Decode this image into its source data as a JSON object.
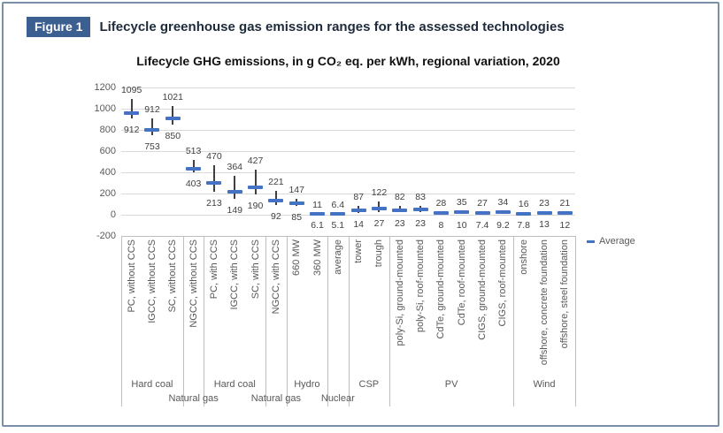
{
  "header": {
    "badge": "Figure 1",
    "title": "Lifecycle greenhouse gas emission ranges for the assessed technologies"
  },
  "chart_data": {
    "type": "scatter",
    "style": "high-low-average range chart (vertical range line with average dash marker, max label above, min label below)",
    "title": "Lifecycle GHG emissions, in g CO₂ eq. per kWh, regional variation, 2020",
    "legend": [
      "Average"
    ],
    "legend_position": "right",
    "ylim": [
      -200,
      1200
    ],
    "y_ticks": [
      1200,
      1000,
      800,
      600,
      400,
      200,
      0,
      -200
    ],
    "grid": true,
    "colors": {
      "average_marker": "#4472C4",
      "range_line": "#404040",
      "gridline": "#D9D9D9",
      "axis_line": "#BFBFBF",
      "axis_text": "#595959",
      "data_label": "#404040",
      "frame_border": "#7A90A8",
      "badge_bg": "#3C5F91",
      "badge_text": "#FFFFFF",
      "header_text": "#1E2B3B"
    },
    "points": [
      {
        "label": "PC, without CCS",
        "group": "Hard coal",
        "min": 912,
        "max": 1095,
        "avg": 960,
        "min_label": "912",
        "max_label": "1095"
      },
      {
        "label": "IGCC, without CCS",
        "group": "Hard coal",
        "min": 753,
        "max": 912,
        "avg": 800,
        "min_label": "753",
        "max_label": "912"
      },
      {
        "label": "SC, without CCS",
        "group": "Hard coal",
        "min": 850,
        "max": 1021,
        "avg": 910,
        "min_label": "850",
        "max_label": "1021"
      },
      {
        "label": "NGCC, without CCS",
        "group": "Natural gas",
        "min": 403,
        "max": 513,
        "avg": 435,
        "min_label": "403",
        "max_label": "513"
      },
      {
        "label": "PC, with CCS",
        "group": "Hard coal",
        "min": 213,
        "max": 470,
        "avg": 300,
        "min_label": "213",
        "max_label": "470"
      },
      {
        "label": "IGCC, with CCS",
        "group": "Hard coal",
        "min": 149,
        "max": 364,
        "avg": 215,
        "min_label": "149",
        "max_label": "364"
      },
      {
        "label": "SC, with CCS",
        "group": "Hard coal",
        "min": 190,
        "max": 427,
        "avg": 260,
        "min_label": "190",
        "max_label": "427"
      },
      {
        "label": "NGCC, with CCS",
        "group": "Natural gas",
        "min": 92,
        "max": 221,
        "avg": 135,
        "min_label": "92",
        "max_label": "221"
      },
      {
        "label": "660 MW",
        "group": "Hydro",
        "min": 85,
        "max": 147,
        "avg": 110,
        "min_label": "85",
        "max_label": "147"
      },
      {
        "label": "360 MW",
        "group": "Hydro",
        "min": 6.1,
        "max": 11,
        "avg": 8.5,
        "min_label": "6.1",
        "max_label": "11"
      },
      {
        "label": "average",
        "group": "Nuclear",
        "min": 5.1,
        "max": 6.4,
        "avg": 5.7,
        "min_label": "5.1",
        "max_label": "6.4"
      },
      {
        "label": "tower",
        "group": "CSP",
        "min": 14,
        "max": 87,
        "avg": 42,
        "min_label": "14",
        "max_label": "87"
      },
      {
        "label": "trough",
        "group": "CSP",
        "min": 27,
        "max": 122,
        "avg": 58,
        "min_label": "27",
        "max_label": "122"
      },
      {
        "label": "poly-Si, ground-mounted",
        "group": "PV",
        "min": 23,
        "max": 82,
        "avg": 45,
        "min_label": "23",
        "max_label": "82"
      },
      {
        "label": "poly-Si, roof-mounted",
        "group": "PV",
        "min": 23,
        "max": 83,
        "avg": 47,
        "min_label": "23",
        "max_label": "83"
      },
      {
        "label": "CdTe, ground-mounted",
        "group": "PV",
        "min": 8,
        "max": 28,
        "avg": 18,
        "min_label": "8",
        "max_label": "28"
      },
      {
        "label": "CdTe, roof-mounted",
        "group": "PV",
        "min": 10,
        "max": 35,
        "avg": 22,
        "min_label": "10",
        "max_label": "35"
      },
      {
        "label": "CIGS, ground-mounted",
        "group": "PV",
        "min": 7.4,
        "max": 27,
        "avg": 17,
        "min_label": "7.4",
        "max_label": "27"
      },
      {
        "label": "CIGS, roof-mounted",
        "group": "PV",
        "min": 9.2,
        "max": 34,
        "avg": 21,
        "min_label": "9.2",
        "max_label": "34"
      },
      {
        "label": "onshore",
        "group": "Wind",
        "min": 7.8,
        "max": 16,
        "avg": 12,
        "min_label": "7.8",
        "max_label": "16"
      },
      {
        "label": "offshore, concrete foundation",
        "group": "Wind",
        "min": 13,
        "max": 23,
        "avg": 17,
        "min_label": "13",
        "max_label": "23"
      },
      {
        "label": "offshore, steel foundation",
        "group": "Wind",
        "min": 12,
        "max": 21,
        "avg": 16,
        "min_label": "12",
        "max_label": "21"
      }
    ],
    "groups": [
      {
        "label": "Hard coal",
        "start": 0,
        "count": 3,
        "row": 1
      },
      {
        "label": "Natural gas",
        "start": 3,
        "count": 1,
        "row": 2
      },
      {
        "label": "Hard coal",
        "start": 4,
        "count": 3,
        "row": 1
      },
      {
        "label": "Natural gas",
        "start": 7,
        "count": 1,
        "row": 2
      },
      {
        "label": "Hydro",
        "start": 8,
        "count": 2,
        "row": 1
      },
      {
        "label": "Nuclear",
        "start": 10,
        "count": 1,
        "row": 2
      },
      {
        "label": "CSP",
        "start": 11,
        "count": 2,
        "row": 1
      },
      {
        "label": "PV",
        "start": 13,
        "count": 6,
        "row": 1
      },
      {
        "label": "Wind",
        "start": 19,
        "count": 3,
        "row": 1
      }
    ]
  }
}
